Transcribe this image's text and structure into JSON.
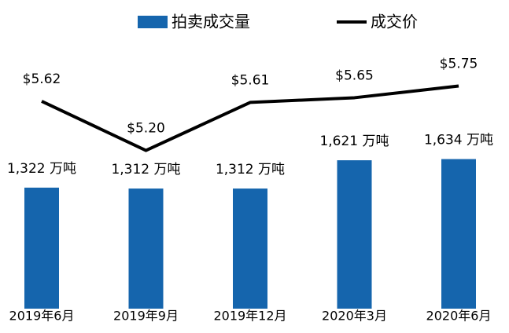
{
  "chart_data": {
    "type": "bar",
    "categories": [
      "2019年6月",
      "2019年9月",
      "2019年12月",
      "2020年3月",
      "2020年6月"
    ],
    "series": [
      {
        "name": "拍卖成交量",
        "type": "bar",
        "color": "#1565ad",
        "values": [
          1322,
          1312,
          1312,
          1621,
          1634
        ],
        "value_labels": [
          "1,322 万吨",
          "1,312 万吨",
          "1,312 万吨",
          "1,621 万吨",
          "1,634 万吨"
        ]
      },
      {
        "name": "成交价",
        "type": "line",
        "axis": "y2",
        "color": "#000000",
        "values": [
          5.62,
          5.2,
          5.61,
          5.65,
          5.75
        ],
        "value_labels": [
          "$5.62",
          "$5.20",
          "$5.61",
          "$5.65",
          "$5.75"
        ]
      }
    ],
    "ylim": [
      0,
      3200
    ],
    "y2lim": [
      3.85,
      6.35
    ],
    "legend": "top"
  }
}
